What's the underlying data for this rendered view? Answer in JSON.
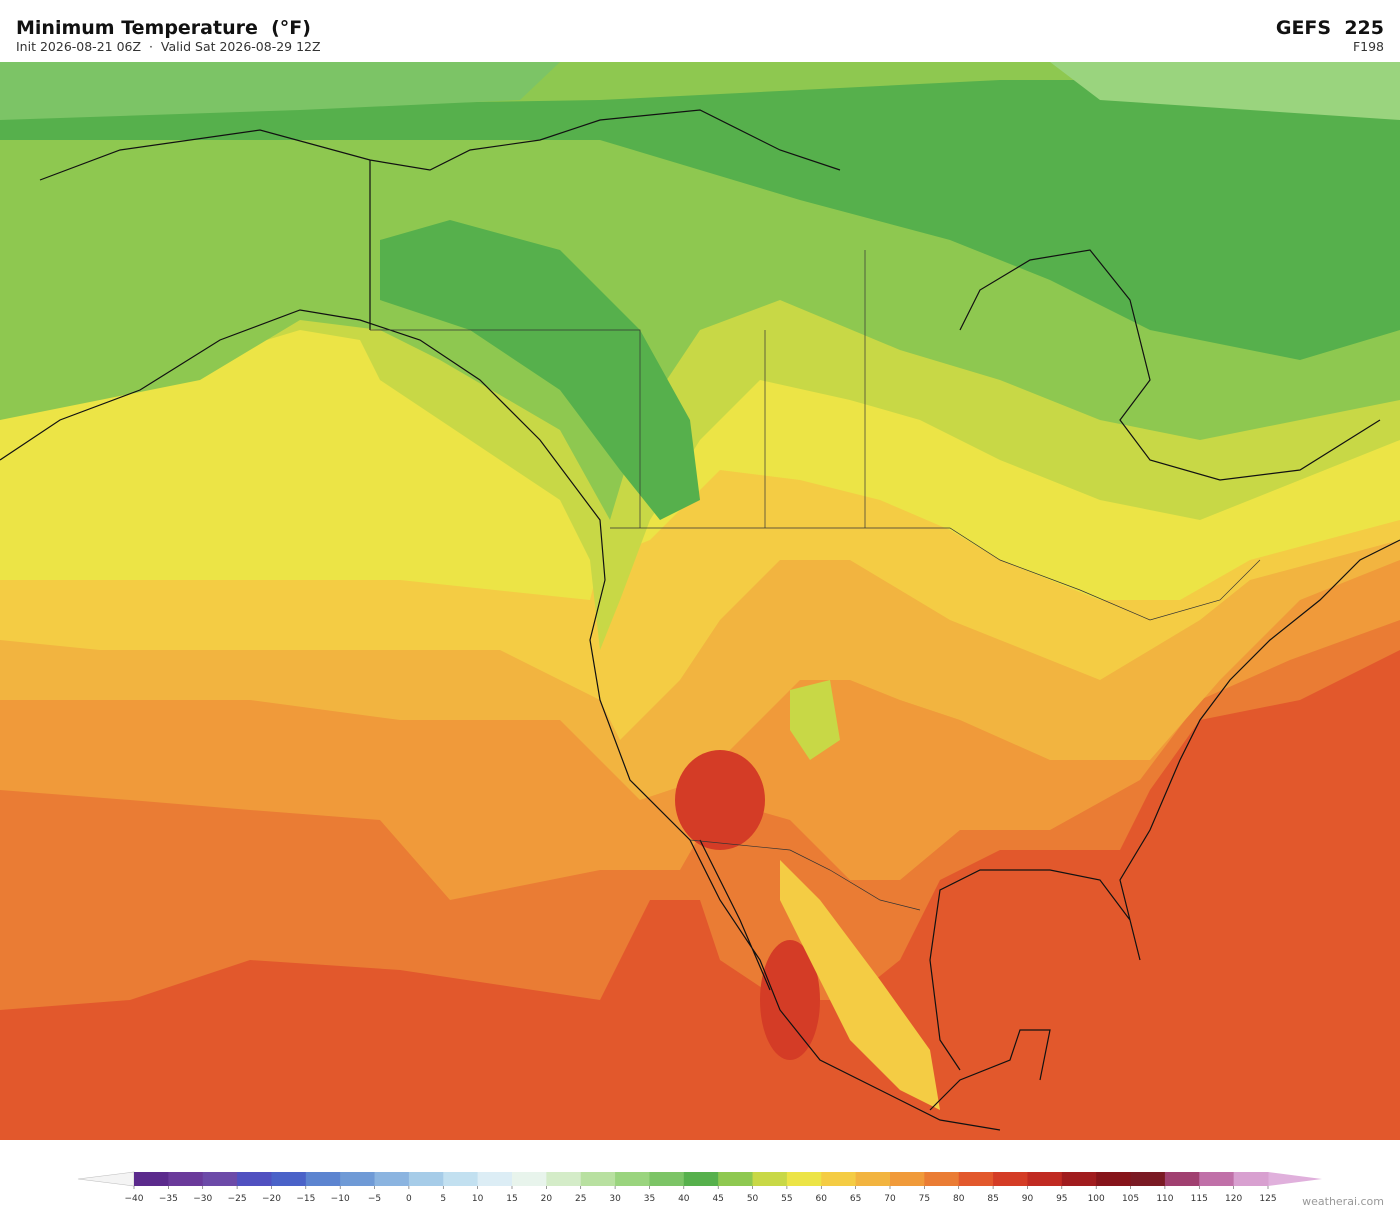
{
  "header": {
    "title": "Minimum Temperature  (°F)",
    "subtitle": "Init 2026-08-21 06Z  ·  Valid Sat 2026-08-29 12Z",
    "model": "GEFS  225",
    "forecast_hour": "F198"
  },
  "colorbar": {
    "ticks": [
      {
        "value": -40,
        "label": "−40"
      },
      {
        "value": -35,
        "label": "−35"
      },
      {
        "value": -30,
        "label": "−30"
      },
      {
        "value": -25,
        "label": "−25"
      },
      {
        "value": -20,
        "label": "−20"
      },
      {
        "value": -15,
        "label": "−15"
      },
      {
        "value": -10,
        "label": "−10"
      },
      {
        "value": -5,
        "label": "−5"
      },
      0,
      5,
      10,
      15,
      20,
      25,
      30,
      35,
      40,
      45,
      50,
      55,
      60,
      65,
      70,
      75,
      80,
      85,
      90,
      95,
      100,
      105,
      110,
      115,
      120,
      125
    ],
    "colors": [
      "#5b2a8c",
      "#6a3a9a",
      "#6c4aa8",
      "#5050c0",
      "#4a62c8",
      "#5c84d0",
      "#6f9ad6",
      "#8bb4e0",
      "#a6cce8",
      "#c2e0f0",
      "#dcedf5",
      "#e8f4ec",
      "#d4ecc8",
      "#b8e0a0",
      "#9ad47e",
      "#7cc466",
      "#56b04c",
      "#8ec850",
      "#c8d846",
      "#ece446",
      "#f4cc44",
      "#f2b440",
      "#f09a3a",
      "#ea7c34",
      "#e2582c",
      "#d43c26",
      "#c02a22",
      "#a01c1e",
      "#86141a",
      "#7a1a24",
      "#a04070",
      "#c070a8",
      "#d8a0d0"
    ],
    "under_color": "#f4f4f4",
    "over_color": "#e0b0dc"
  },
  "watermark": "weatherai.com"
}
